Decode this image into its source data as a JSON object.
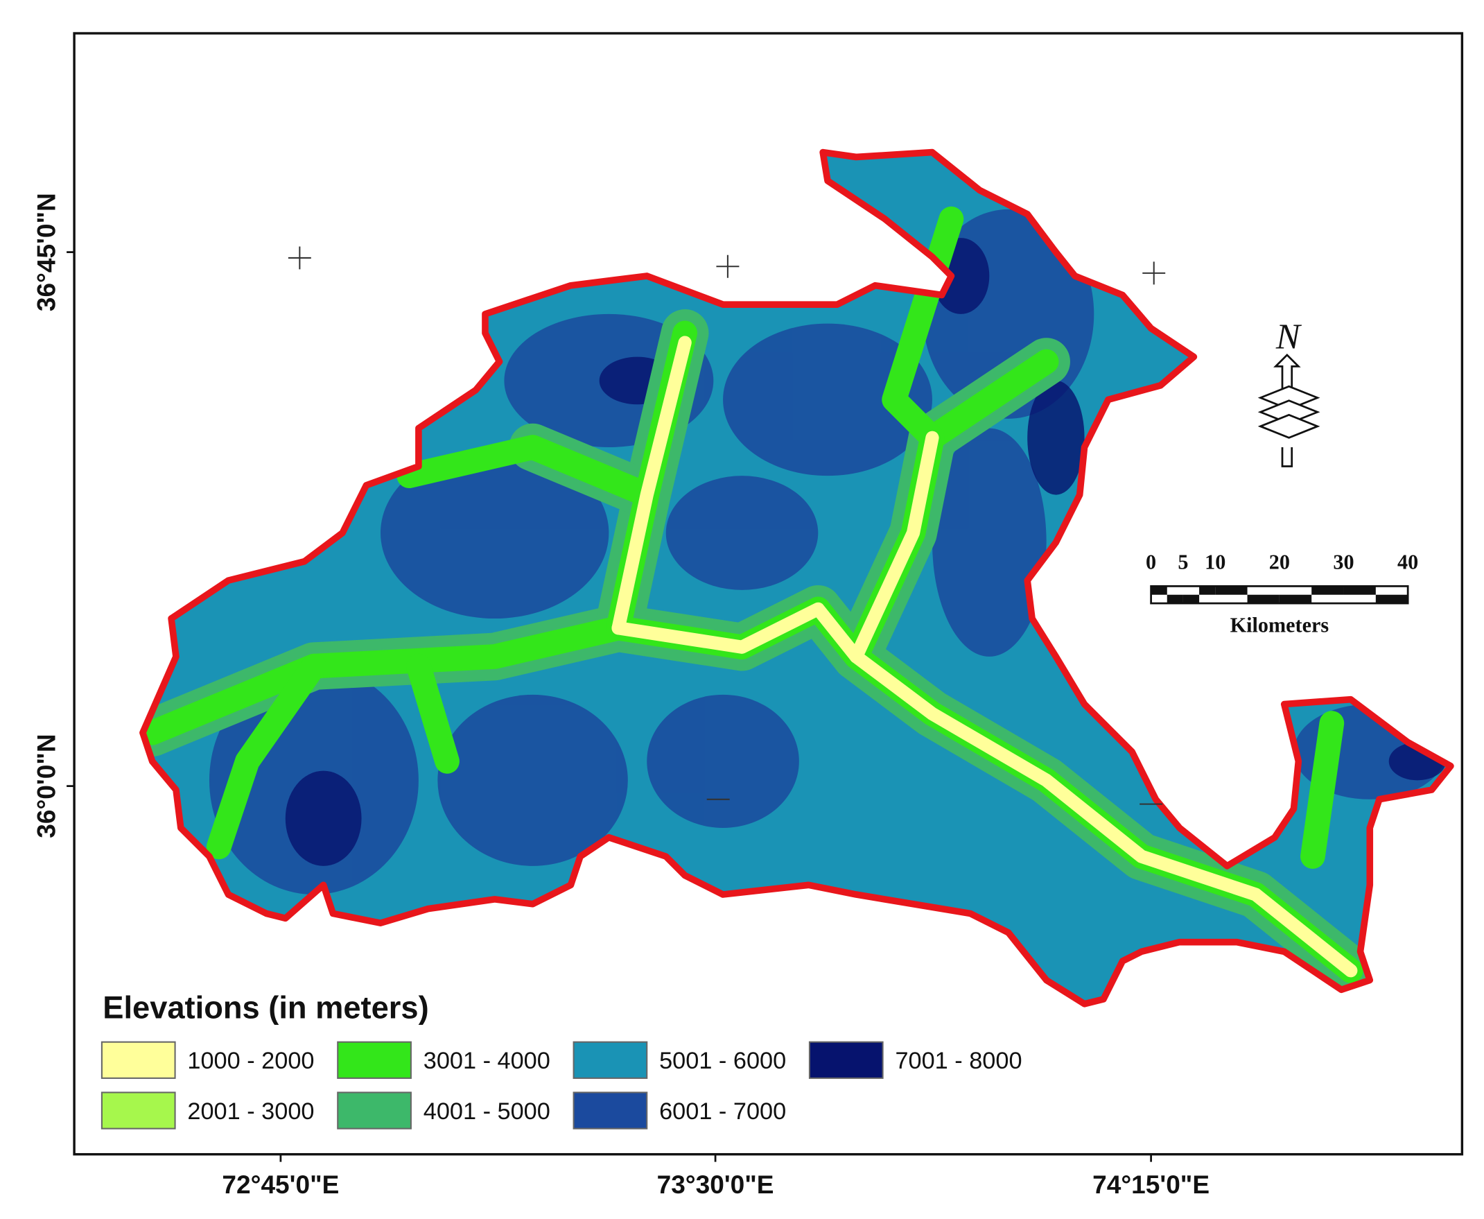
{
  "map": {
    "x_labels": [
      "72°45'0\"E",
      "73°30'0\"E",
      "74°15'0\"E"
    ],
    "y_labels": [
      "36°45'0\"N",
      "36°0'0\"N"
    ],
    "north_arrow": "N",
    "scale_bar": {
      "ticks": [
        0,
        5,
        10,
        20,
        30,
        40
      ],
      "unit": "Kilometers"
    },
    "legend": {
      "title": "Elevations (in meters)",
      "items": [
        {
          "label": "1000 - 2000",
          "color": "#ffff9a"
        },
        {
          "label": "2001 - 3000",
          "color": "#a6f74c"
        },
        {
          "label": "3001 - 4000",
          "color": "#33e61a"
        },
        {
          "label": "4001 - 5000",
          "color": "#3db86a"
        },
        {
          "label": "5001 - 6000",
          "color": "#1a93b5"
        },
        {
          "label": "6001 - 7000",
          "color": "#1b4a9e"
        },
        {
          "label": "7001 - 8000",
          "color": "#06136e"
        }
      ]
    }
  }
}
